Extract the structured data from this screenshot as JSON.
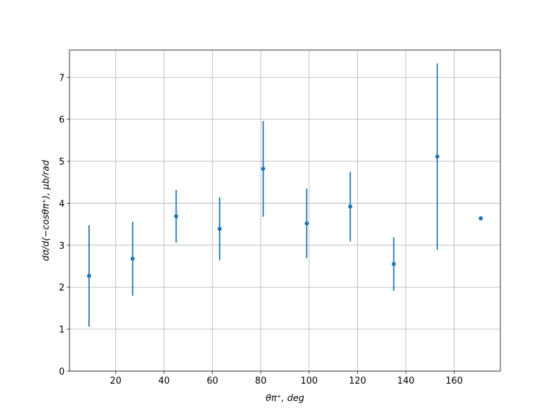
{
  "chart_data": {
    "type": "errorbar",
    "x_label": "θπ⁺, deg",
    "y_label": "dσ/d(−cosθπ⁺), μb/rad",
    "x": [
      9,
      27,
      45,
      63,
      81,
      99,
      117,
      135,
      153,
      171
    ],
    "series": [
      {
        "color": "#1f77b4",
        "values": [
          2.27,
          2.68,
          3.69,
          3.39,
          4.82,
          3.52,
          3.92,
          2.55,
          5.11,
          3.64
        ],
        "errors": [
          1.21,
          0.88,
          0.63,
          0.75,
          1.14,
          0.83,
          0.83,
          0.64,
          2.22,
          0
        ]
      }
    ],
    "xlim": [
      0.9,
      179.1
    ],
    "ylim": [
      0,
      7.65
    ],
    "xticks": [
      20,
      40,
      60,
      80,
      100,
      120,
      140,
      160
    ],
    "yticks": [
      0,
      1,
      2,
      3,
      4,
      5,
      6,
      7
    ],
    "grid": true
  }
}
